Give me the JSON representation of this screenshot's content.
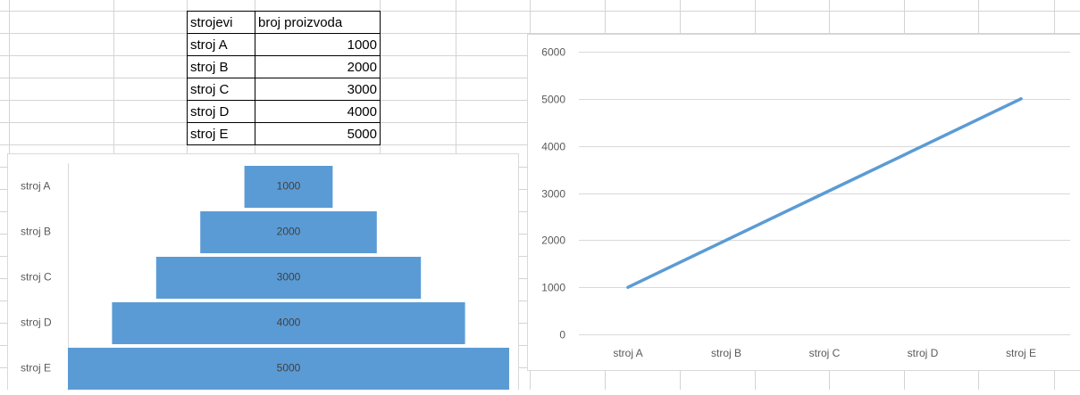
{
  "table": {
    "headers": [
      "strojevi",
      "broj proizvoda"
    ],
    "rows": [
      {
        "label": "stroj A",
        "value": "1000"
      },
      {
        "label": "stroj B",
        "value": "2000"
      },
      {
        "label": "stroj C",
        "value": "3000"
      },
      {
        "label": "stroj D",
        "value": "4000"
      },
      {
        "label": "stroj E",
        "value": "5000"
      }
    ]
  },
  "chart_data": [
    {
      "type": "funnel",
      "categories": [
        "stroj A",
        "stroj B",
        "stroj C",
        "stroj D",
        "stroj E"
      ],
      "values": [
        1000,
        2000,
        3000,
        4000,
        5000
      ],
      "data_labels": [
        "1000",
        "2000",
        "3000",
        "4000",
        "5000"
      ],
      "color": "#5b9bd5",
      "title": "",
      "legend": "none"
    },
    {
      "type": "line",
      "categories": [
        "stroj A",
        "stroj B",
        "stroj C",
        "stroj D",
        "stroj E"
      ],
      "values": [
        1000,
        2000,
        3000,
        4000,
        5000
      ],
      "ylim": [
        0,
        6000
      ],
      "yticks": [
        "0",
        "1000",
        "2000",
        "3000",
        "4000",
        "5000",
        "6000"
      ],
      "grid": true,
      "color": "#5b9bd5",
      "title": "",
      "xlabel": "",
      "ylabel": "",
      "legend": "none"
    }
  ]
}
